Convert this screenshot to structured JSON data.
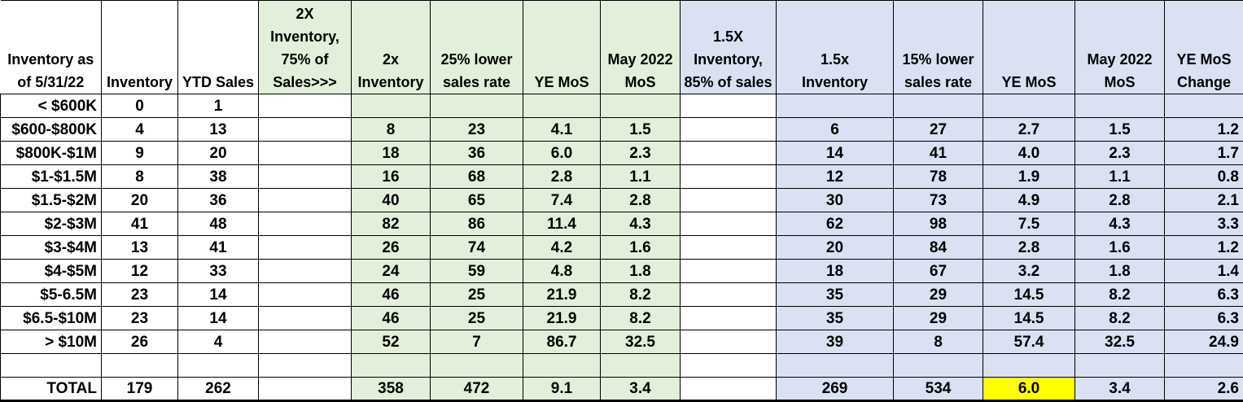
{
  "app": {
    "description_label": "Spreadsheet inventory months-of-supply analysis table"
  },
  "colors": {
    "green_fill": "#E2EFDA",
    "blue_fill": "#D9E1F2",
    "highlight_yellow": "#FFFF00",
    "grid_border": "#000000",
    "text": "#000000"
  },
  "table": {
    "columns": [
      {
        "id": "row-label",
        "header": "Inventory as\nof 5/31/22",
        "width": 124,
        "header_fill": "white",
        "body_fill": "white",
        "align": "right"
      },
      {
        "id": "inventory",
        "header": "Inventory",
        "width": 94,
        "header_fill": "white",
        "body_fill": "white",
        "align": "center"
      },
      {
        "id": "ytd-sales",
        "header": "YTD Sales",
        "width": 99,
        "header_fill": "white",
        "body_fill": "white",
        "align": "center"
      },
      {
        "id": "note-2x",
        "header": "2X\nInventory,\n75% of\nSales>>>",
        "width": 114,
        "header_fill": "green",
        "body_fill": "white",
        "align": "center"
      },
      {
        "id": "inv-2x",
        "header": "2x\nInventory",
        "width": 97,
        "header_fill": "green",
        "body_fill": "green",
        "align": "center"
      },
      {
        "id": "sales-25-lower",
        "header": "25% lower\nsales rate",
        "width": 114,
        "header_fill": "green",
        "body_fill": "green",
        "align": "center"
      },
      {
        "id": "ye-mos-2x",
        "header": "YE MoS",
        "width": 95,
        "header_fill": "green",
        "body_fill": "green",
        "align": "center"
      },
      {
        "id": "may-2022-mos-2x",
        "header": "May 2022\nMoS",
        "width": 98,
        "header_fill": "green",
        "body_fill": "green",
        "align": "center"
      },
      {
        "id": "note-15x",
        "header": "1.5X\nInventory,\n85% of sales",
        "width": 118,
        "header_fill": "blue",
        "body_fill": "white",
        "align": "center"
      },
      {
        "id": "inv-15x",
        "header": "1.5x\nInventory",
        "width": 144,
        "header_fill": "blue",
        "body_fill": "blue",
        "align": "center"
      },
      {
        "id": "sales-15-lower",
        "header": "15% lower\nsales rate",
        "width": 110,
        "header_fill": "blue",
        "body_fill": "blue",
        "align": "center"
      },
      {
        "id": "ye-mos-15x",
        "header": "YE MoS",
        "width": 113,
        "header_fill": "blue",
        "body_fill": "blue",
        "align": "center"
      },
      {
        "id": "may-2022-mos-15x",
        "header": "May 2022\nMoS",
        "width": 110,
        "header_fill": "blue",
        "body_fill": "blue",
        "align": "center"
      },
      {
        "id": "ye-mos-change",
        "header": "YE MoS\nChange",
        "width": 97,
        "header_fill": "blue",
        "body_fill": "blue",
        "align": "right"
      }
    ],
    "rows": [
      {
        "label": "< $600K",
        "cells": [
          "0",
          "1",
          "",
          "",
          "",
          "",
          "",
          "",
          "",
          "",
          "",
          "",
          ""
        ]
      },
      {
        "label": "$600-$800K",
        "cells": [
          "4",
          "13",
          "",
          "8",
          "23",
          "4.1",
          "1.5",
          "",
          "6",
          "27",
          "2.7",
          "1.5",
          "1.2"
        ]
      },
      {
        "label": "$800K-$1M",
        "cells": [
          "9",
          "20",
          "",
          "18",
          "36",
          "6.0",
          "2.3",
          "",
          "14",
          "41",
          "4.0",
          "2.3",
          "1.7"
        ]
      },
      {
        "label": "$1-$1.5M",
        "cells": [
          "8",
          "38",
          "",
          "16",
          "68",
          "2.8",
          "1.1",
          "",
          "12",
          "78",
          "1.9",
          "1.1",
          "0.8"
        ]
      },
      {
        "label": "$1.5-$2M",
        "cells": [
          "20",
          "36",
          "",
          "40",
          "65",
          "7.4",
          "2.8",
          "",
          "30",
          "73",
          "4.9",
          "2.8",
          "2.1"
        ]
      },
      {
        "label": "$2-$3M",
        "cells": [
          "41",
          "48",
          "",
          "82",
          "86",
          "11.4",
          "4.3",
          "",
          "62",
          "98",
          "7.5",
          "4.3",
          "3.3"
        ]
      },
      {
        "label": "$3-$4M",
        "cells": [
          "13",
          "41",
          "",
          "26",
          "74",
          "4.2",
          "1.6",
          "",
          "20",
          "84",
          "2.8",
          "1.6",
          "1.2"
        ]
      },
      {
        "label": "$4-$5M",
        "cells": [
          "12",
          "33",
          "",
          "24",
          "59",
          "4.8",
          "1.8",
          "",
          "18",
          "67",
          "3.2",
          "1.8",
          "1.4"
        ]
      },
      {
        "label": "$5-6.5M",
        "cells": [
          "23",
          "14",
          "",
          "46",
          "25",
          "21.9",
          "8.2",
          "",
          "35",
          "29",
          "14.5",
          "8.2",
          "6.3"
        ]
      },
      {
        "label": "$6.5-$10M",
        "cells": [
          "23",
          "14",
          "",
          "46",
          "25",
          "21.9",
          "8.2",
          "",
          "35",
          "29",
          "14.5",
          "8.2",
          "6.3"
        ]
      },
      {
        "label": "> $10M",
        "cells": [
          "26",
          "4",
          "",
          "52",
          "7",
          "86.7",
          "32.5",
          "",
          "39",
          "8",
          "57.4",
          "32.5",
          "24.9"
        ]
      },
      {
        "label": "",
        "cells": [
          "",
          "",
          "",
          "",
          "",
          "",
          "",
          "",
          "",
          "",
          "",
          "",
          ""
        ]
      },
      {
        "label": "TOTAL",
        "cells": [
          "179",
          "262",
          "",
          "358",
          "472",
          "9.1",
          "3.4",
          "",
          "269",
          "534",
          "6.0",
          "3.4",
          "2.6"
        ],
        "is_total": true,
        "highlight_cell_index": 10
      }
    ]
  }
}
